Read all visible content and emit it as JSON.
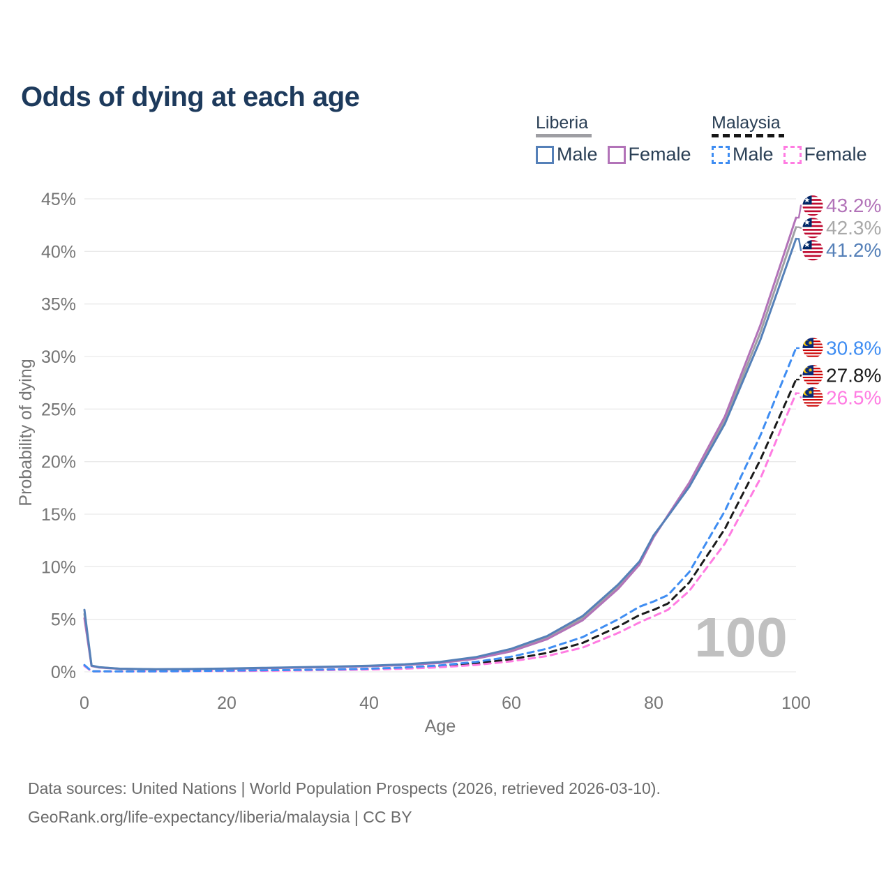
{
  "title": "Odds of dying at each age",
  "legend": {
    "groups": [
      {
        "name": "Liberia",
        "line_style": "solid",
        "underline_color": "#9e9ea3",
        "items": [
          {
            "label": "Male",
            "color": "#5580b8"
          },
          {
            "label": "Female",
            "color": "#b273b8"
          }
        ]
      },
      {
        "name": "Malaysia",
        "line_style": "dashed",
        "underline_color": "#161616",
        "items": [
          {
            "label": "Male",
            "color": "#3f8df2"
          },
          {
            "label": "Female",
            "color": "#ff7ce2"
          }
        ]
      }
    ]
  },
  "chart_data": {
    "type": "line",
    "title": "Odds of dying at each age",
    "xlabel": "Age",
    "ylabel": "Probability of dying",
    "xlim": [
      0,
      100
    ],
    "ylim": [
      0,
      45
    ],
    "x_ticks": [
      0,
      20,
      40,
      60,
      80,
      100
    ],
    "y_ticks": [
      0,
      5,
      10,
      15,
      20,
      25,
      30,
      35,
      40,
      45
    ],
    "y_tick_suffix": "%",
    "grid": true,
    "legend_position": "top-right",
    "watermark": "100",
    "x": [
      0,
      1,
      2,
      5,
      10,
      15,
      20,
      25,
      30,
      35,
      40,
      45,
      50,
      55,
      60,
      65,
      70,
      75,
      78,
      80,
      82,
      85,
      90,
      95,
      100
    ],
    "series": [
      {
        "name": "Liberia All",
        "country": "liberia",
        "style": "solid",
        "color": "#a0a0a4",
        "end_label": "42.3%",
        "label_color": "#a9a9a9",
        "values": [
          5.5,
          0.58,
          0.44,
          0.29,
          0.24,
          0.26,
          0.3,
          0.36,
          0.42,
          0.48,
          0.55,
          0.68,
          0.9,
          1.32,
          2.1,
          3.25,
          5.1,
          8.1,
          10.35,
          12.9,
          14.85,
          17.8,
          23.9,
          32.3,
          42.3
        ]
      },
      {
        "name": "Liberia Female",
        "country": "liberia",
        "style": "solid",
        "color": "#b273b8",
        "end_label": "43.2%",
        "label_color": "#b273b8",
        "values": [
          5.1,
          0.55,
          0.42,
          0.28,
          0.23,
          0.25,
          0.29,
          0.34,
          0.4,
          0.46,
          0.53,
          0.65,
          0.85,
          1.25,
          1.95,
          3.1,
          4.9,
          7.9,
          10.2,
          12.8,
          14.9,
          18.0,
          24.3,
          33.0,
          43.2
        ]
      },
      {
        "name": "Liberia Male",
        "country": "liberia",
        "style": "solid",
        "color": "#5580b8",
        "end_label": "41.2%",
        "label_color": "#5580b8",
        "values": [
          5.9,
          0.6,
          0.45,
          0.3,
          0.25,
          0.27,
          0.32,
          0.38,
          0.44,
          0.5,
          0.58,
          0.72,
          0.95,
          1.4,
          2.2,
          3.4,
          5.3,
          8.3,
          10.5,
          13.0,
          14.8,
          17.6,
          23.6,
          31.6,
          41.2
        ]
      },
      {
        "name": "Malaysia All",
        "country": "malaysia",
        "style": "dashed",
        "color": "#1a1a1a",
        "end_label": "27.8%",
        "label_color": "#1a1a1a",
        "values": [
          0.6,
          0.055,
          0.045,
          0.04,
          0.045,
          0.07,
          0.1,
          0.13,
          0.16,
          0.2,
          0.26,
          0.36,
          0.53,
          0.8,
          1.2,
          1.8,
          2.75,
          4.3,
          5.4,
          5.9,
          6.5,
          8.5,
          13.6,
          20.2,
          27.8
        ]
      },
      {
        "name": "Malaysia Female",
        "country": "malaysia",
        "style": "dashed",
        "color": "#ff7ce2",
        "end_label": "26.5%",
        "label_color": "#ff7ce2",
        "values": [
          0.55,
          0.05,
          0.04,
          0.035,
          0.04,
          0.06,
          0.08,
          0.1,
          0.13,
          0.17,
          0.22,
          0.3,
          0.44,
          0.66,
          1.0,
          1.5,
          2.3,
          3.7,
          4.7,
          5.3,
          5.9,
          7.7,
          12.2,
          18.4,
          26.5
        ]
      },
      {
        "name": "Malaysia Male",
        "country": "malaysia",
        "style": "dashed",
        "color": "#3f8df2",
        "end_label": "30.8%",
        "label_color": "#3f8df2",
        "values": [
          0.65,
          0.06,
          0.05,
          0.04,
          0.05,
          0.08,
          0.12,
          0.15,
          0.18,
          0.23,
          0.3,
          0.42,
          0.62,
          0.95,
          1.45,
          2.2,
          3.3,
          5.0,
          6.2,
          6.7,
          7.3,
          9.5,
          15.3,
          22.5,
          30.8
        ]
      }
    ]
  },
  "styles": {
    "grid_color": "#eaeaea",
    "axis_text_color": "#757575",
    "watermark_color": "#c0c0c0",
    "title_color": "#1d3a5c",
    "flag_liberia_red": "#BF0A30",
    "flag_liberia_blue": "#002868",
    "flag_malaysia_red": "#CC0001",
    "flag_malaysia_blue": "#062a78",
    "flag_malaysia_yellow": "#FFCC00"
  },
  "footer": {
    "line1": "Data sources: United Nations | World Population Prospects (2026, retrieved 2026-03-10).",
    "line2": "GeoRank.org/life-expectancy/liberia/malaysia | CC BY"
  }
}
